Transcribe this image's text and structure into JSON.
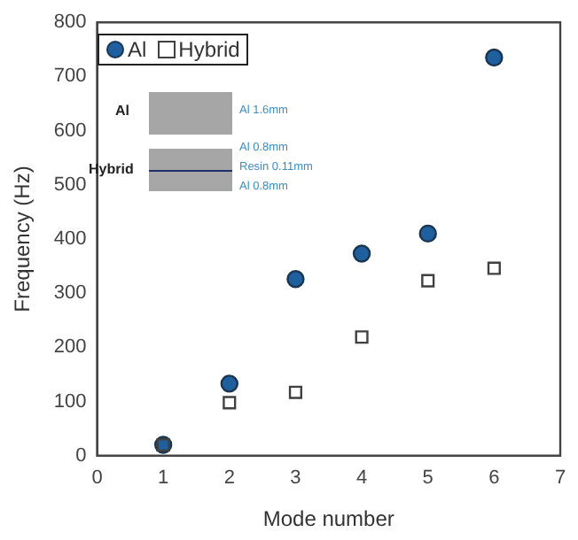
{
  "chart_data": {
    "type": "scatter",
    "xlabel": "Mode number",
    "ylabel": "Frequency (Hz)",
    "x": [
      1,
      2,
      3,
      4,
      5,
      6
    ],
    "series": [
      {
        "name": "Al",
        "color": "#1f5f9e",
        "marker": "circle",
        "values": [
          20,
          133,
          326,
          373,
          410,
          735
        ]
      },
      {
        "name": "Hybrid",
        "color": "#404040",
        "marker": "square",
        "values": [
          20,
          98,
          117,
          219,
          323,
          346
        ]
      }
    ],
    "xlim": [
      0,
      7
    ],
    "xticks": [
      0,
      1,
      2,
      3,
      4,
      5,
      6,
      7
    ],
    "ylim": [
      0,
      800
    ],
    "yticks": [
      0,
      100,
      200,
      300,
      400,
      500,
      600,
      700,
      800
    ],
    "grid": false,
    "legend": "top left",
    "annotations": [
      "Al",
      "Al 1.6mm",
      "Hybrid",
      "Al 0.8mm",
      "Resin 0.11mm",
      "Al 0.8mm"
    ]
  }
}
